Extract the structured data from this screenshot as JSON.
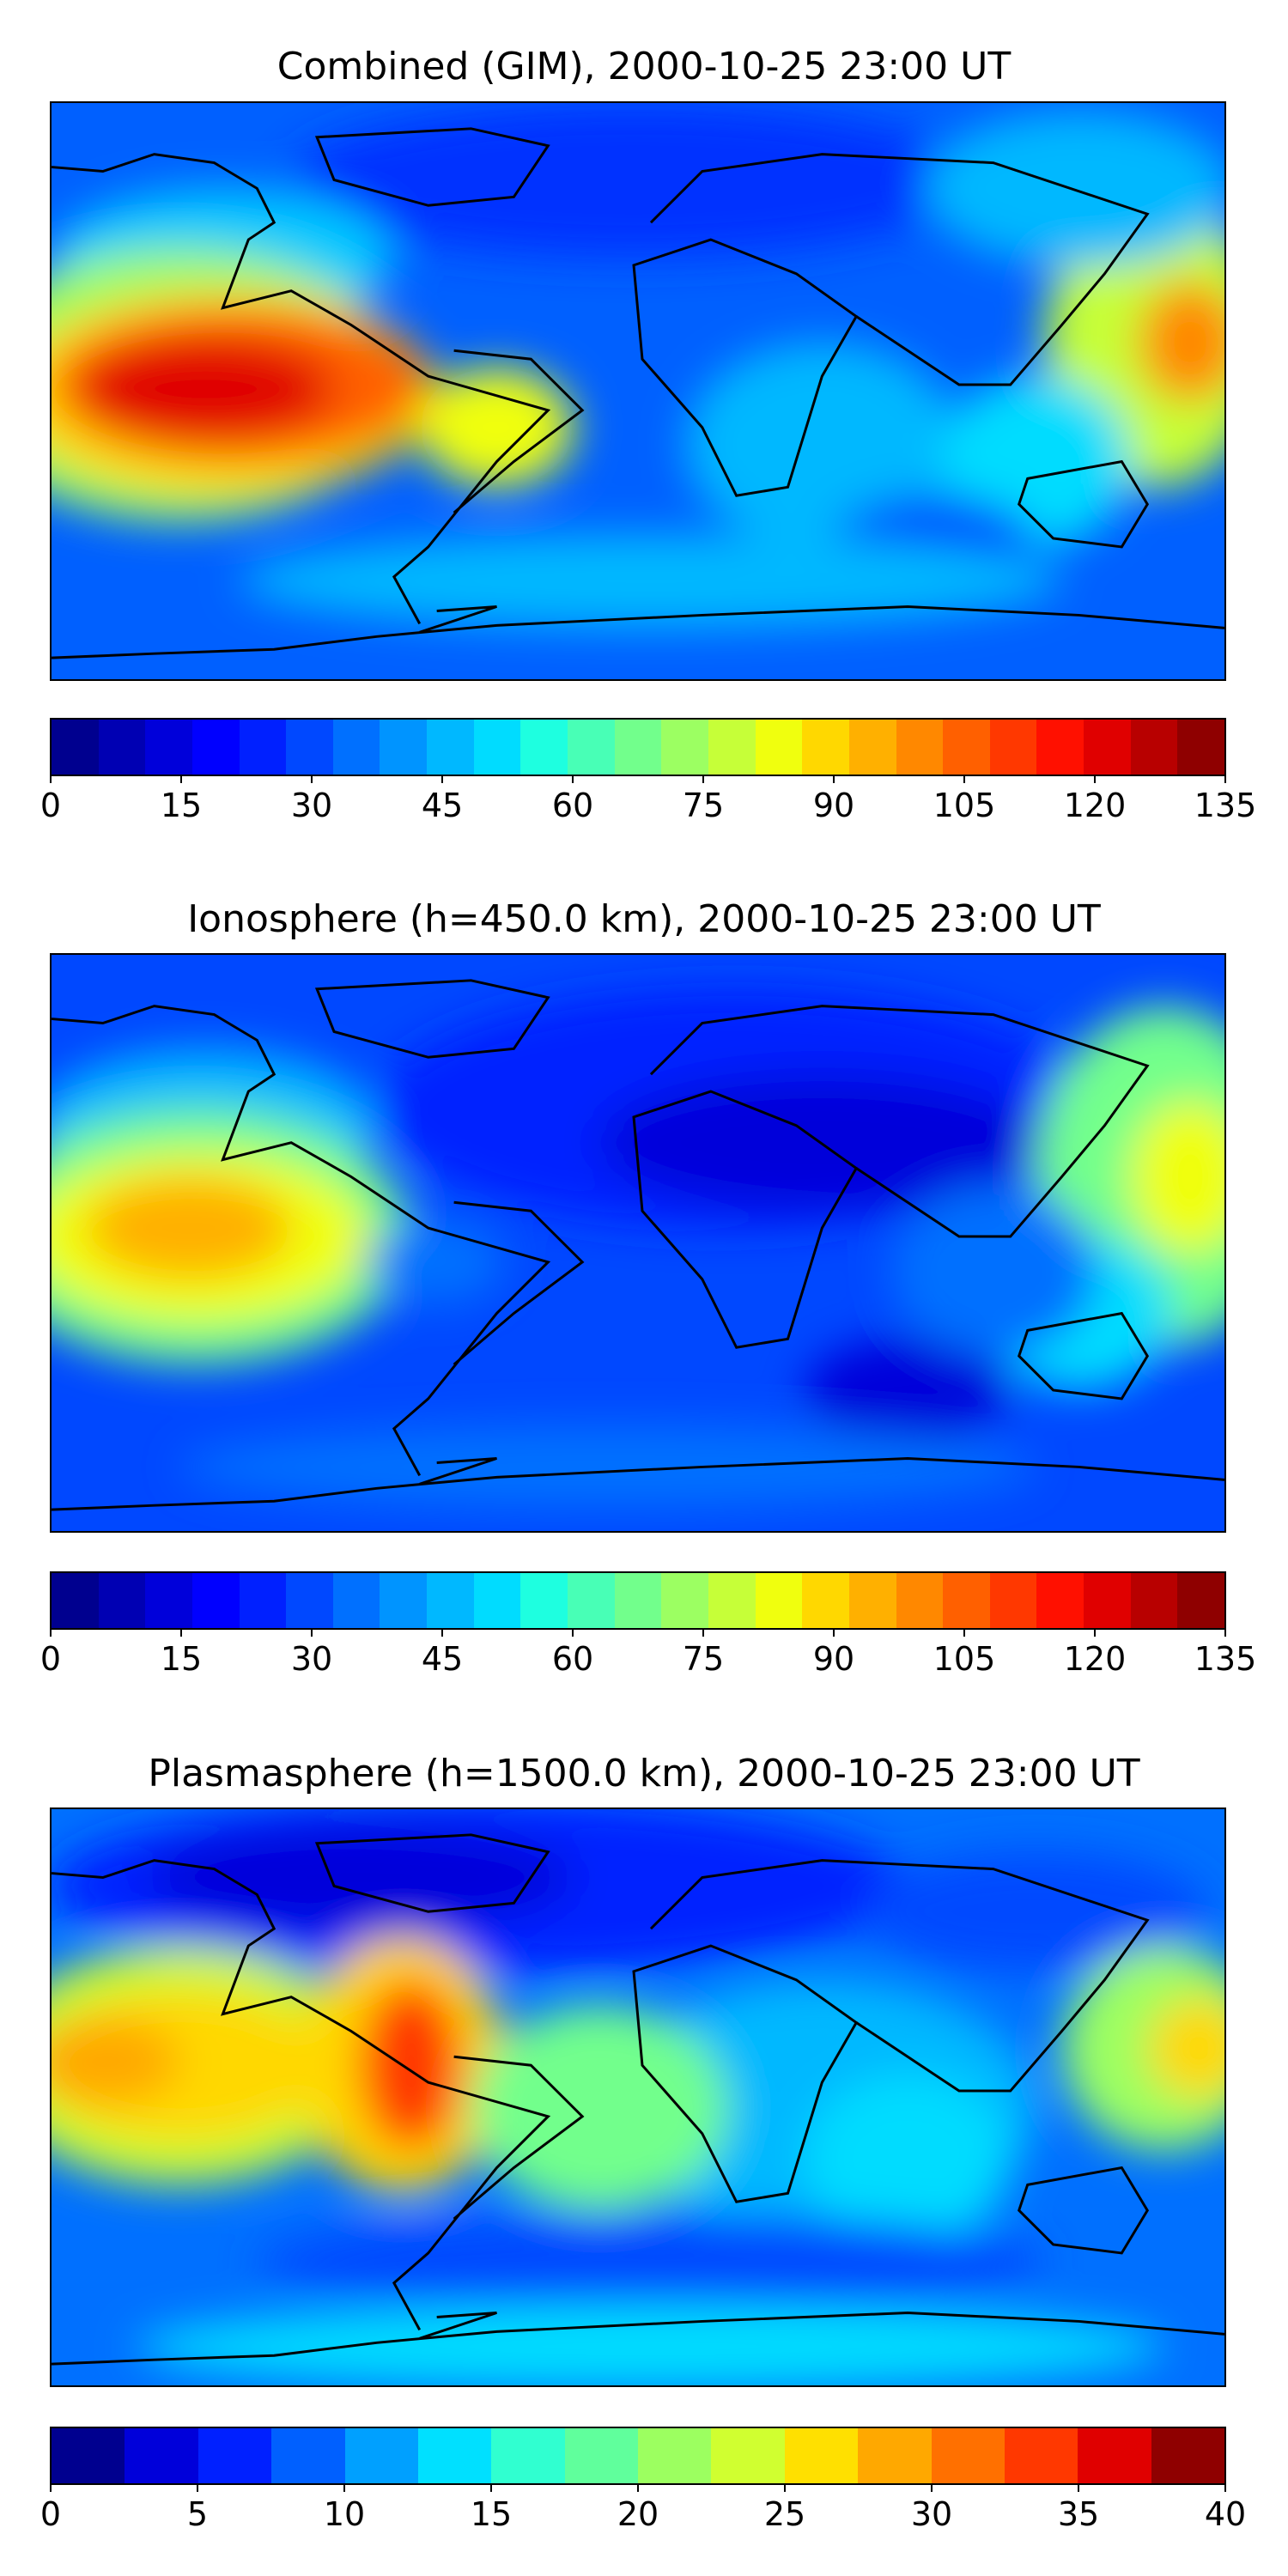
{
  "panels": [
    {
      "title": "Combined (GIM), 2000-10-25 23:00 UT",
      "colorbar": {
        "ticks": [
          "0",
          "15",
          "30",
          "45",
          "60",
          "75",
          "90",
          "105",
          "120",
          "135"
        ],
        "colors": [
          "#00008f",
          "#0000b3",
          "#0000da",
          "#0000ff",
          "#0020ff",
          "#0048ff",
          "#0070ff",
          "#0094ff",
          "#00b8ff",
          "#00dcff",
          "#1effe0",
          "#48ffb6",
          "#72ff8c",
          "#9cff62",
          "#c6ff38",
          "#f0ff0e",
          "#ffd800",
          "#ffb000",
          "#ff8800",
          "#ff6000",
          "#ff3800",
          "#ff1000",
          "#e00000",
          "#b80000",
          "#8f0000"
        ]
      }
    },
    {
      "title": "Ionosphere  (h=450.0 km), 2000-10-25 23:00 UT",
      "colorbar": {
        "ticks": [
          "0",
          "15",
          "30",
          "45",
          "60",
          "75",
          "90",
          "105",
          "120",
          "135"
        ],
        "colors": [
          "#00008f",
          "#0000b3",
          "#0000da",
          "#0000ff",
          "#0020ff",
          "#0048ff",
          "#0070ff",
          "#0094ff",
          "#00b8ff",
          "#00dcff",
          "#1effe0",
          "#48ffb6",
          "#72ff8c",
          "#9cff62",
          "#c6ff38",
          "#f0ff0e",
          "#ffd800",
          "#ffb000",
          "#ff8800",
          "#ff6000",
          "#ff3800",
          "#ff1000",
          "#e00000",
          "#b80000",
          "#8f0000"
        ]
      }
    },
    {
      "title": "Plasmasphere (h=1500.0 km), 2000-10-25 23:00 UT",
      "colorbar": {
        "ticks": [
          "0",
          "5",
          "10",
          "15",
          "20",
          "25",
          "30",
          "35",
          "40"
        ],
        "colors": [
          "#00008f",
          "#0000da",
          "#0020ff",
          "#0060ff",
          "#00a0ff",
          "#00e0ff",
          "#30ffd0",
          "#60ff9c",
          "#9cff60",
          "#d0ff30",
          "#ffe000",
          "#ffa800",
          "#ff7000",
          "#ff3800",
          "#e00000",
          "#8f0000"
        ]
      }
    }
  ]
}
